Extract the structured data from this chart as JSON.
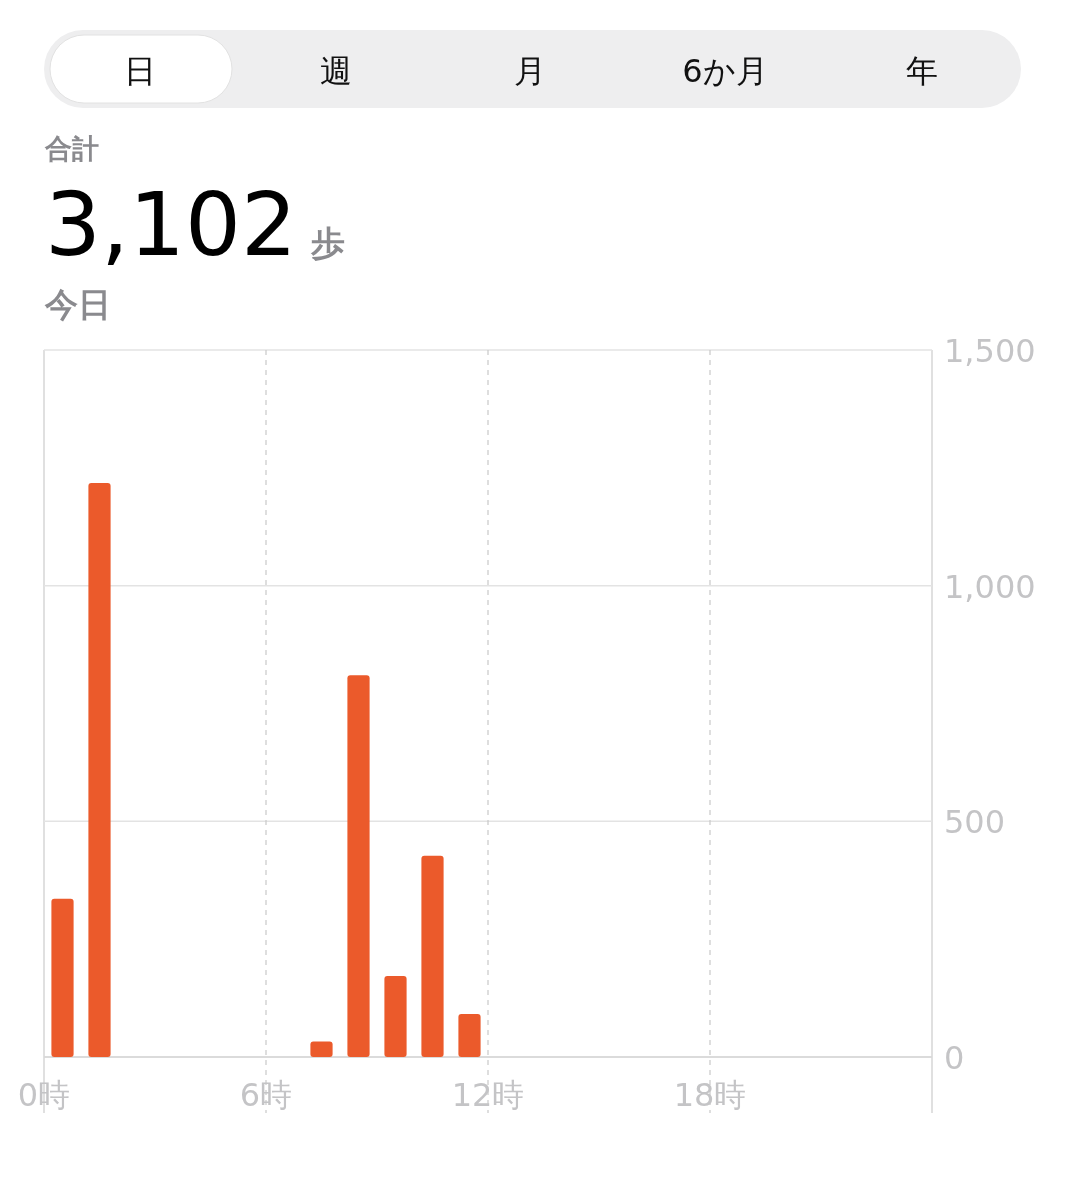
{
  "chart_data": [
    {
      "type": "other",
      "annotations": [
        "日",
        "週",
        "月",
        "6か月",
        "年",
        "合計",
        "3,102",
        "歩",
        "今日"
      ]
    },
    {
      "type": "bar",
      "x": [
        0.5,
        1.5,
        7.5,
        8.5,
        9.5,
        10.5,
        11.5
      ],
      "values": [
        336,
        1218,
        33,
        810,
        172,
        427,
        91
      ],
      "color": "#eb5a2b",
      "xlim": [
        0,
        24
      ],
      "xticks": [
        {
          "value": 0,
          "label": "0時"
        },
        {
          "value": 6,
          "label": "6時"
        },
        {
          "value": 12,
          "label": "12時"
        },
        {
          "value": 18,
          "label": "18時"
        }
      ],
      "ylim": [
        0,
        1500
      ],
      "yticks": [
        0,
        500,
        {
          "value": 1000,
          "label": "1,000"
        },
        {
          "value": 1500,
          "label": "1,500"
        }
      ],
      "grid": true
    }
  ]
}
